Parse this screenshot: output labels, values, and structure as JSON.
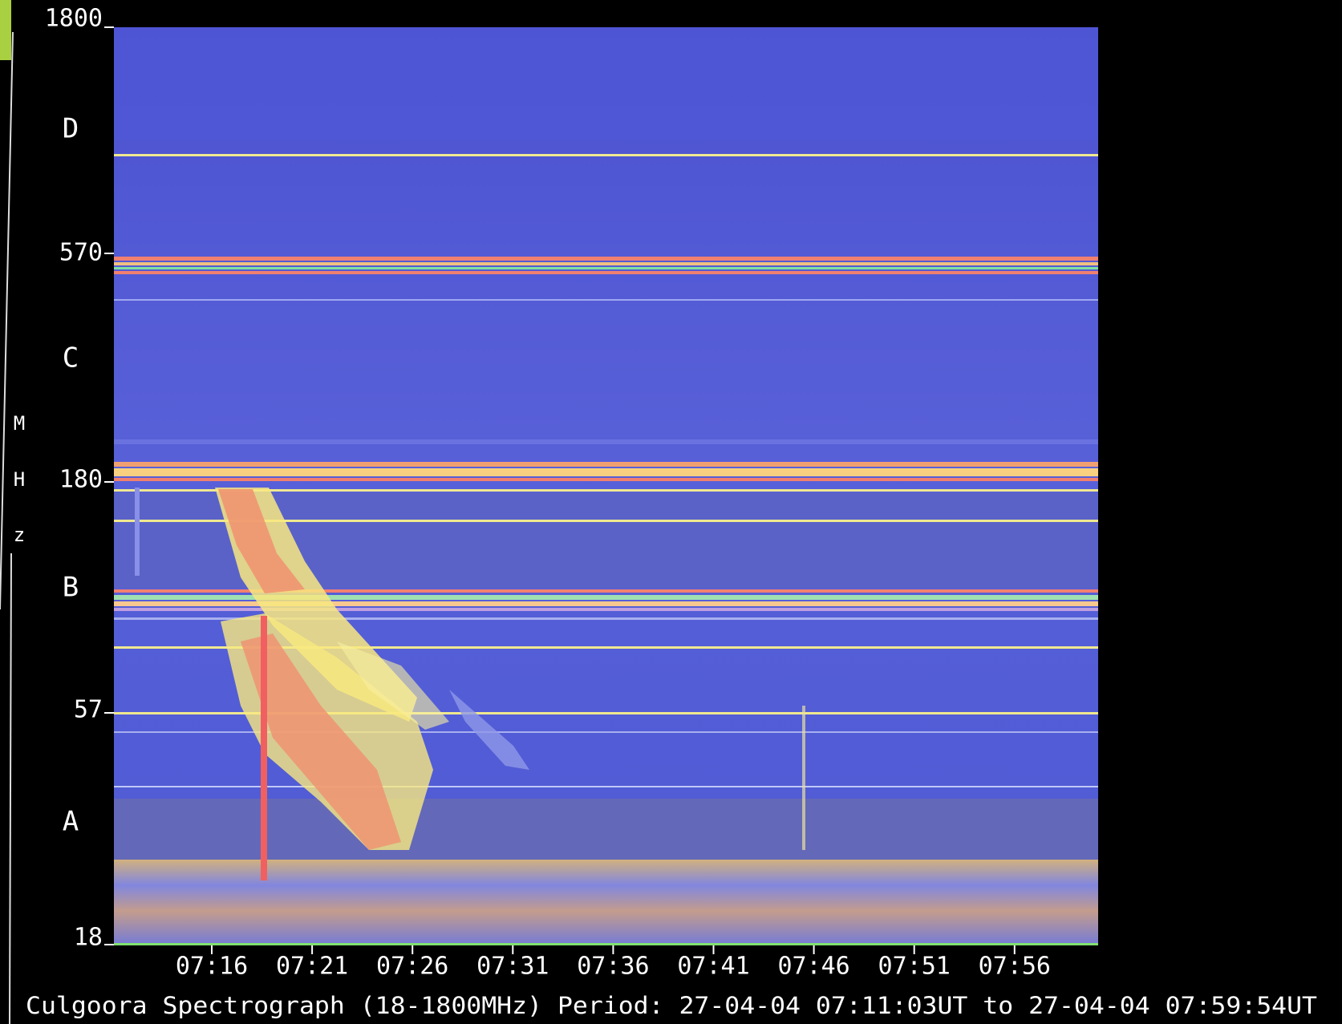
{
  "y_axis": {
    "ticks": [
      "1800",
      "570",
      "180",
      "57",
      "18"
    ],
    "bands": [
      "D",
      "C",
      "B",
      "A"
    ],
    "unit_letters": [
      "M",
      "H",
      "z"
    ]
  },
  "x_axis": {
    "ticks": [
      "07:16",
      "07:21",
      "07:26",
      "07:31",
      "07:36",
      "07:41",
      "07:46",
      "07:51",
      "07:56"
    ]
  },
  "caption": "Culgoora Spectrograph (18-1800MHz) Period: 27-04-04 07:11:03UT to 27-04-04 07:59:54UT"
}
